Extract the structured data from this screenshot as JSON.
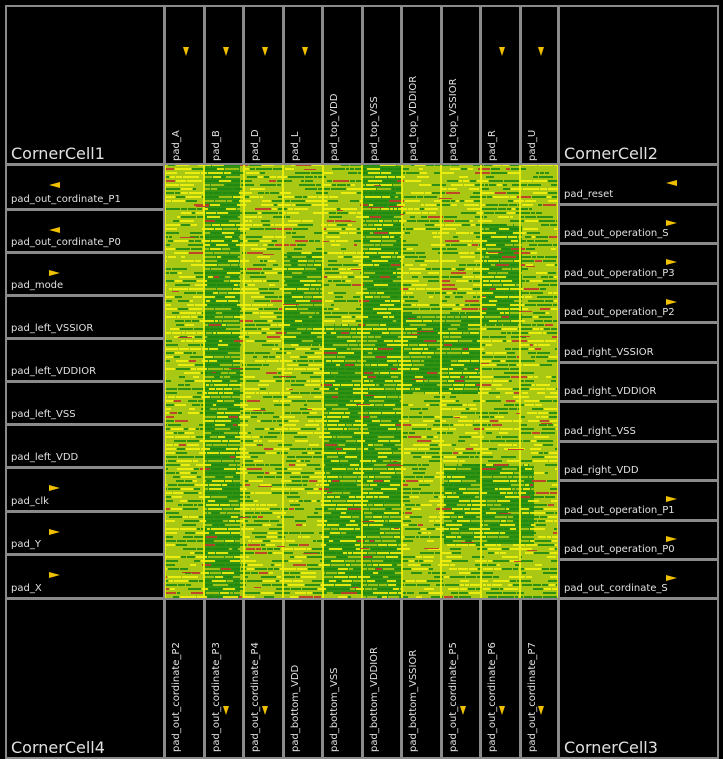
{
  "corners": [
    {
      "label": "CornerCell1"
    },
    {
      "label": "CornerCell2"
    },
    {
      "label": "CornerCell3"
    },
    {
      "label": "CornerCell4"
    }
  ],
  "top_pads": [
    {
      "label": "pad_A",
      "pin": true
    },
    {
      "label": "pad_B",
      "pin": true
    },
    {
      "label": "pad_D",
      "pin": true
    },
    {
      "label": "pad_L",
      "pin": true
    },
    {
      "label": "pad_top_VDD",
      "pin": false
    },
    {
      "label": "pad_top_VSS",
      "pin": false
    },
    {
      "label": "pad_top_VDDIOR",
      "pin": false
    },
    {
      "label": "pad_top_VSSIOR",
      "pin": false
    },
    {
      "label": "pad_R",
      "pin": true
    },
    {
      "label": "pad_U",
      "pin": true
    }
  ],
  "left_pads": [
    {
      "label": "pad_out_cordinate_P1",
      "pin": "left"
    },
    {
      "label": "pad_out_cordinate_P0",
      "pin": "left"
    },
    {
      "label": "pad_mode",
      "pin": "right"
    },
    {
      "label": "pad_left_VSSIOR",
      "pin": "none"
    },
    {
      "label": "pad_left_VDDIOR",
      "pin": "none"
    },
    {
      "label": "pad_left_VSS",
      "pin": "none"
    },
    {
      "label": "pad_left_VDD",
      "pin": "none"
    },
    {
      "label": "pad_clk",
      "pin": "right"
    },
    {
      "label": "pad_Y",
      "pin": "right"
    },
    {
      "label": "pad_X",
      "pin": "right"
    }
  ],
  "right_pads": [
    {
      "label": "pad_reset",
      "pin": "left"
    },
    {
      "label": "pad_out_operation_S",
      "pin": "right"
    },
    {
      "label": "pad_out_operation_P3",
      "pin": "right"
    },
    {
      "label": "pad_out_operation_P2",
      "pin": "right"
    },
    {
      "label": "pad_right_VSSIOR",
      "pin": "none"
    },
    {
      "label": "pad_right_VDDIOR",
      "pin": "none"
    },
    {
      "label": "pad_right_VSS",
      "pin": "none"
    },
    {
      "label": "pad_right_VDD",
      "pin": "none"
    },
    {
      "label": "pad_out_operation_P1",
      "pin": "right"
    },
    {
      "label": "pad_out_operation_P0",
      "pin": "right"
    },
    {
      "label": "pad_out_cordinate_S",
      "pin": "right"
    }
  ],
  "bottom_pads": [
    {
      "label": "pad_out_cordinate_P2",
      "pin": false
    },
    {
      "label": "pad_out_cordinate_P3",
      "pin": true
    },
    {
      "label": "pad_out_cordinate_P4",
      "pin": true
    },
    {
      "label": "pad_bottom_VDD",
      "pin": false
    },
    {
      "label": "pad_bottom_VSS",
      "pin": false
    },
    {
      "label": "pad_bottom_VDDIOR",
      "pin": false
    },
    {
      "label": "pad_bottom_VSSIOR",
      "pin": false
    },
    {
      "label": "pad_out_cordinate_P5",
      "pin": true
    },
    {
      "label": "pad_out_cordinate_P6",
      "pin": true
    },
    {
      "label": "pad_out_cordinate_P7",
      "pin": true
    }
  ],
  "colors": {
    "outline": "#8a8a8a",
    "label": "#e0e0e0",
    "pin": "#f0c000",
    "core_fill": "#a8c814",
    "core_dense": "#1f8a12",
    "core_yellow": "#f2ef10",
    "core_red": "#c0382a"
  }
}
